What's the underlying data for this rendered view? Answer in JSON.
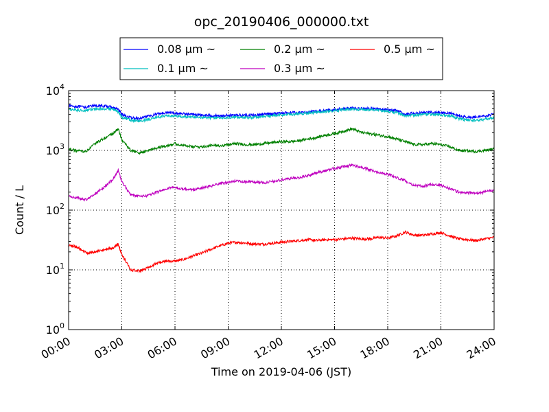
{
  "chart_data": {
    "type": "line",
    "title": "opc_20190406_000000.txt",
    "xlabel": "Time on 2019-04-06 (JST)",
    "ylabel": "Count / L",
    "x_unit": "hours",
    "xlim": [
      0,
      24
    ],
    "ylim": [
      1,
      10000
    ],
    "yscale": "log",
    "grid": true,
    "legend_position": "top, above plot",
    "x_ticks": [
      0,
      3,
      6,
      9,
      12,
      15,
      18,
      21,
      24
    ],
    "x_tick_labels": [
      "00:00",
      "03:00",
      "06:00",
      "09:00",
      "12:00",
      "15:00",
      "18:00",
      "21:00",
      "24:00"
    ],
    "y_ticks": [
      1,
      10,
      100,
      1000,
      10000
    ],
    "y_tick_labels": [
      {
        "base": "10",
        "exp": "0"
      },
      {
        "base": "10",
        "exp": "1"
      },
      {
        "base": "10",
        "exp": "2"
      },
      {
        "base": "10",
        "exp": "3"
      },
      {
        "base": "10",
        "exp": "4"
      }
    ],
    "x": [
      0,
      0.5,
      1,
      1.5,
      2,
      2.5,
      2.8,
      3,
      3.5,
      4,
      4.5,
      5,
      5.5,
      6,
      6.5,
      7,
      7.5,
      8,
      8.5,
      9,
      9.5,
      10,
      10.5,
      11,
      11.5,
      12,
      12.5,
      13,
      13.5,
      14,
      14.5,
      15,
      15.5,
      16,
      16.5,
      17,
      17.5,
      18,
      18.5,
      19,
      19.5,
      20,
      20.5,
      21,
      21.5,
      22,
      22.5,
      23,
      23.5,
      24
    ],
    "series": [
      {
        "name": "0.08 μm ~",
        "color": "#0000ff",
        "values": [
          5600,
          5400,
          5300,
          5600,
          5500,
          5300,
          4800,
          4000,
          3500,
          3400,
          3700,
          4100,
          4300,
          4200,
          4100,
          4000,
          3900,
          3850,
          3800,
          3850,
          3900,
          3850,
          3900,
          4000,
          4100,
          4200,
          4300,
          4300,
          4400,
          4500,
          4700,
          4800,
          5000,
          5100,
          5000,
          5000,
          4900,
          4800,
          4600,
          4000,
          4200,
          4300,
          4300,
          4300,
          4200,
          3800,
          3600,
          3600,
          3800,
          4000
        ]
      },
      {
        "name": "0.1 μm ~",
        "color": "#00bfbf",
        "values": [
          4900,
          4700,
          4700,
          4900,
          5000,
          4900,
          4400,
          3600,
          3200,
          3100,
          3300,
          3600,
          3800,
          3750,
          3650,
          3600,
          3550,
          3500,
          3500,
          3550,
          3600,
          3550,
          3600,
          3700,
          3800,
          3900,
          4000,
          4100,
          4200,
          4300,
          4500,
          4600,
          4800,
          4900,
          4800,
          4800,
          4700,
          4500,
          4300,
          3700,
          3900,
          4000,
          4000,
          3900,
          3800,
          3400,
          3200,
          3200,
          3300,
          3500
        ]
      },
      {
        "name": "0.2 μm ~",
        "color": "#008000",
        "values": [
          1050,
          980,
          960,
          1300,
          1600,
          1900,
          2300,
          1500,
          1000,
          900,
          1000,
          1100,
          1200,
          1300,
          1200,
          1150,
          1150,
          1200,
          1200,
          1250,
          1300,
          1250,
          1250,
          1300,
          1350,
          1400,
          1400,
          1450,
          1550,
          1650,
          1800,
          1900,
          2100,
          2300,
          2000,
          1900,
          1800,
          1700,
          1550,
          1400,
          1250,
          1250,
          1300,
          1250,
          1150,
          1000,
          980,
          960,
          1000,
          1050
        ]
      },
      {
        "name": "0.3 μm ~",
        "color": "#bf00bf",
        "values": [
          170,
          160,
          150,
          190,
          240,
          330,
          460,
          300,
          180,
          170,
          175,
          200,
          230,
          240,
          225,
          220,
          235,
          250,
          275,
          290,
          310,
          300,
          295,
          290,
          300,
          320,
          340,
          350,
          380,
          420,
          460,
          500,
          530,
          570,
          520,
          470,
          430,
          400,
          350,
          310,
          260,
          250,
          270,
          260,
          230,
          200,
          195,
          190,
          200,
          220
        ]
      },
      {
        "name": "0.5 μm ~",
        "color": "#ff0000",
        "values": [
          26,
          24,
          19,
          20,
          22,
          23,
          27,
          18,
          10,
          9.5,
          11,
          13,
          14,
          14,
          15,
          17,
          19,
          22,
          25,
          28,
          29,
          28,
          27,
          27,
          28,
          29,
          30,
          31,
          32,
          31,
          32,
          32,
          33,
          34,
          33,
          33,
          35,
          34,
          37,
          43,
          38,
          38,
          40,
          42,
          37,
          33,
          32,
          31,
          33,
          35
        ]
      }
    ]
  }
}
